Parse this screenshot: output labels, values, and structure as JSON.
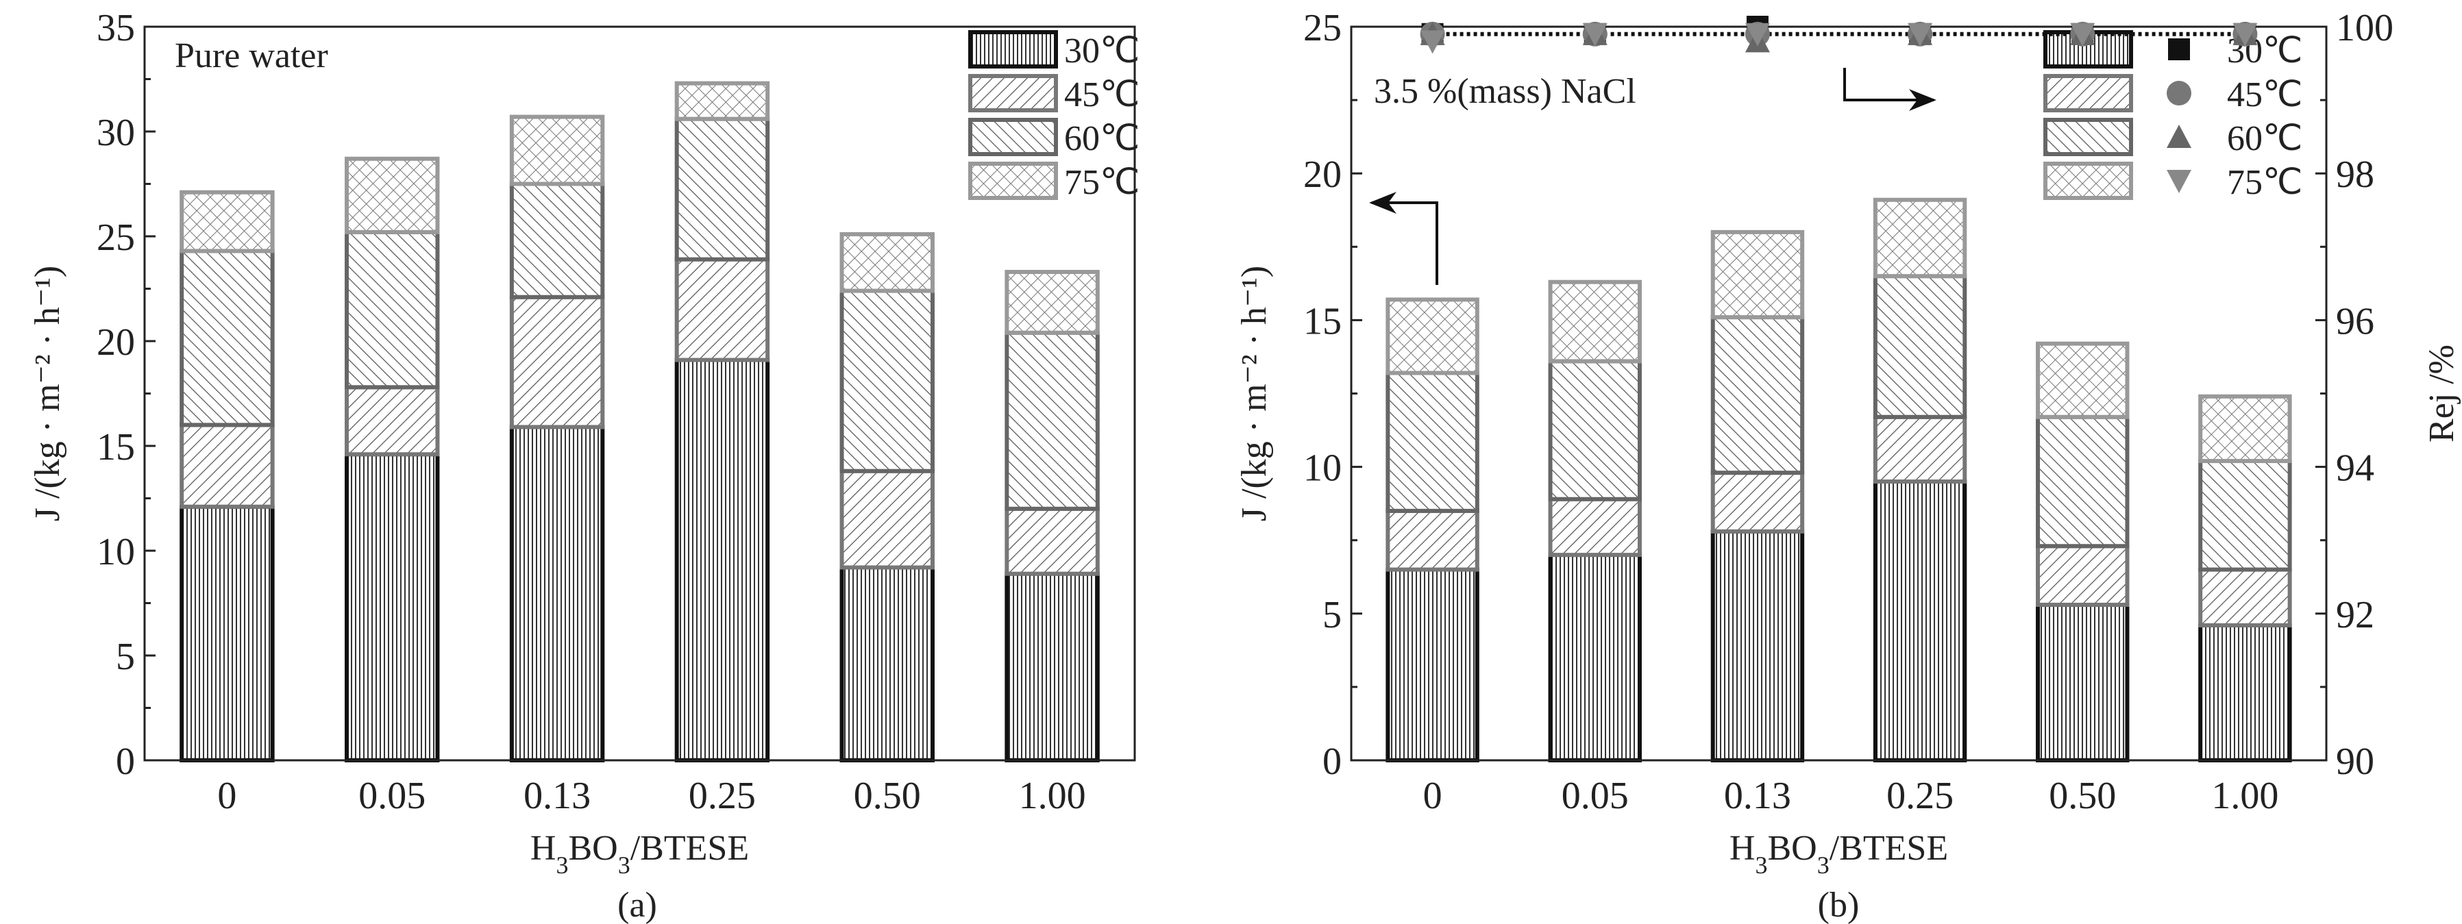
{
  "chart_data": [
    {
      "type": "bar",
      "stacked": true,
      "panel_label": "(a)",
      "annotation": "Pure water",
      "xlabel": "H3BO3/BTESE",
      "ylabel": "J /(kg · m⁻² · h⁻¹)",
      "categories": [
        "0",
        "0.05",
        "0.13",
        "0.25",
        "0.50",
        "1.00"
      ],
      "ylim": [
        0,
        35
      ],
      "yticks": [
        0,
        5,
        10,
        15,
        20,
        25,
        30,
        35
      ],
      "legend_position": "top-right",
      "series": [
        {
          "name": "30℃",
          "cumulative": [
            12.1,
            14.6,
            15.9,
            19.1,
            9.2,
            8.9
          ]
        },
        {
          "name": "45℃",
          "cumulative": [
            16.0,
            17.8,
            22.1,
            23.9,
            13.8,
            12.0
          ]
        },
        {
          "name": "60℃",
          "cumulative": [
            24.3,
            25.2,
            27.5,
            30.6,
            22.4,
            20.4
          ]
        },
        {
          "name": "75℃",
          "cumulative": [
            27.1,
            28.7,
            30.7,
            32.3,
            25.1,
            23.3
          ]
        }
      ]
    },
    {
      "type": "bar",
      "stacked": true,
      "panel_label": "(b)",
      "annotation": "3.5 %(mass) NaCl",
      "xlabel": "H3BO3/BTESE",
      "ylabel": "J /(kg · m⁻² · h⁻¹)",
      "y2label": "Rej /%",
      "categories": [
        "0",
        "0.05",
        "0.13",
        "0.25",
        "0.50",
        "1.00"
      ],
      "ylim": [
        0,
        25
      ],
      "yticks": [
        0,
        5,
        10,
        15,
        20,
        25
      ],
      "y2lim": [
        90,
        100
      ],
      "y2ticks": [
        90,
        92,
        94,
        96,
        98,
        100
      ],
      "legend_position": "top-right",
      "series": [
        {
          "name": "30℃",
          "cumulative": [
            6.5,
            7.0,
            7.8,
            9.5,
            5.3,
            4.6
          ],
          "rejection": [
            99.9,
            99.9,
            100.0,
            99.9,
            99.9,
            99.9
          ]
        },
        {
          "name": "45℃",
          "cumulative": [
            8.5,
            8.9,
            9.8,
            11.7,
            7.3,
            6.5
          ],
          "rejection": [
            99.9,
            99.9,
            99.9,
            99.9,
            99.9,
            99.9
          ]
        },
        {
          "name": "60℃",
          "cumulative": [
            13.2,
            13.6,
            15.1,
            16.5,
            11.7,
            10.2
          ],
          "rejection": [
            99.9,
            99.9,
            99.8,
            99.9,
            99.9,
            99.9
          ]
        },
        {
          "name": "75℃",
          "cumulative": [
            15.7,
            16.3,
            18.0,
            19.1,
            14.2,
            12.4
          ],
          "rejection": [
            99.8,
            99.9,
            99.9,
            99.9,
            99.9,
            99.9
          ]
        }
      ]
    }
  ],
  "colors": {
    "s30": "#111111",
    "s45": "#777777",
    "s60": "#666666",
    "s75": "#999999"
  }
}
